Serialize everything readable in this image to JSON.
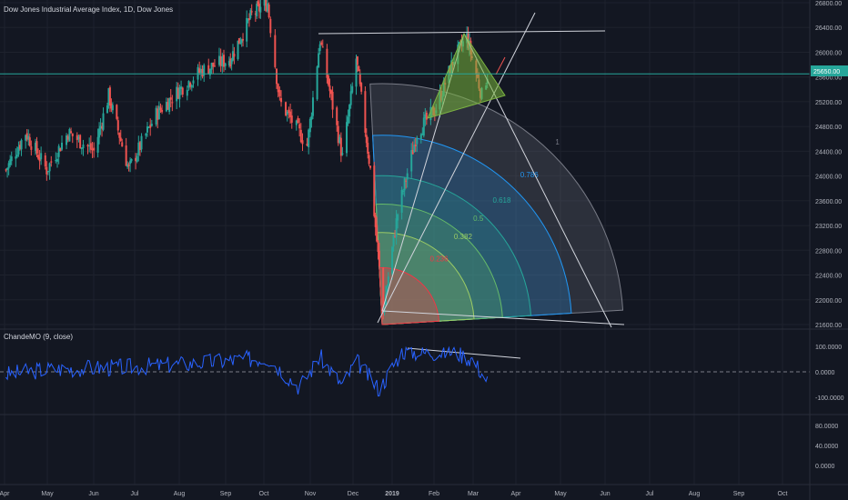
{
  "title": "Dow Jones Industrial Average Index, 1D, Dow Jones",
  "colors": {
    "background": "#131722",
    "up": "#26a69a",
    "down": "#ef5350",
    "grid": "#1e222d",
    "axis_text": "#b2b5be",
    "price_line": "#26a69a",
    "cmo_line": "#2962ff"
  },
  "price_axis": {
    "ticks": [
      "26800.00",
      "26400.00",
      "26000.00",
      "25600.00",
      "25200.00",
      "24800.00",
      "24400.00",
      "24000.00",
      "23600.00",
      "23200.00",
      "22800.00",
      "22400.00",
      "22000.00",
      "21600.00"
    ],
    "current_price_label": "25650.00",
    "current_price": 25650
  },
  "time_axis": {
    "ticks": [
      "Apr",
      "May",
      "Jun",
      "Jul",
      "Aug",
      "Sep",
      "Oct",
      "Nov",
      "Dec",
      "2019",
      "Feb",
      "Mar",
      "Apr",
      "May",
      "Jun",
      "Jul",
      "Aug",
      "Sep",
      "Oct"
    ]
  },
  "fib_fan": {
    "levels": [
      {
        "value": "0.236",
        "color": "#f23645"
      },
      {
        "value": "0.382",
        "color": "#9ccc65"
      },
      {
        "value": "0.5",
        "color": "#66bb6a"
      },
      {
        "value": "0.618",
        "color": "#26a69a"
      },
      {
        "value": "0.786",
        "color": "#2196f3"
      },
      {
        "value": "1",
        "color": "#787b86"
      }
    ]
  },
  "indicator": {
    "label": "ChandeMO (9, close)",
    "ticks": [
      "100.0000",
      "0.0000",
      "-100.0000"
    ]
  },
  "bottom_pane": {
    "ticks": [
      "80.0000",
      "40.0000",
      "0.0000"
    ]
  },
  "chart_data": {
    "type": "line",
    "title": "Dow Jones Industrial Average Index, 1D, Dow Jones",
    "series": [
      {
        "name": "Dow Jones Industrial Average Index",
        "x": [
          "2018-04-02",
          "2018-04-16",
          "2018-05-01",
          "2018-05-15",
          "2018-06-01",
          "2018-06-12",
          "2018-06-27",
          "2018-07-16",
          "2018-08-01",
          "2018-08-15",
          "2018-09-04",
          "2018-09-21",
          "2018-10-03",
          "2018-10-11",
          "2018-10-29",
          "2018-11-07",
          "2018-11-23",
          "2018-12-03",
          "2018-12-14",
          "2018-12-24",
          "2019-01-04",
          "2019-01-18",
          "2019-02-01",
          "2019-02-15",
          "2019-02-25",
          "2019-03-08",
          "2019-03-12"
        ],
        "y": [
          24100,
          24700,
          24100,
          24700,
          24400,
          25300,
          24100,
          25000,
          25400,
          25700,
          25900,
          26600,
          26800,
          25200,
          24500,
          26200,
          24300,
          25900,
          24100,
          21800,
          23400,
          24700,
          25100,
          25900,
          26250,
          25300,
          25650
        ]
      },
      {
        "name": "ChandeMO (9, close)",
        "x": [
          "2018-04-02",
          "2018-05-01",
          "2018-06-01",
          "2018-07-02",
          "2018-08-01",
          "2018-09-04",
          "2018-10-03",
          "2018-10-24",
          "2018-11-07",
          "2018-11-23",
          "2018-12-03",
          "2018-12-21",
          "2019-01-07",
          "2019-01-25",
          "2019-02-15",
          "2019-03-01",
          "2019-03-12"
        ],
        "y": [
          -10,
          10,
          15,
          20,
          30,
          45,
          55,
          -60,
          60,
          -55,
          45,
          -70,
          80,
          75,
          80,
          50,
          -35
        ]
      }
    ],
    "ylim": [
      21600,
      26800
    ],
    "indicator_ylim": [
      -100,
      100
    ],
    "grid": true,
    "legend": "top-left"
  }
}
